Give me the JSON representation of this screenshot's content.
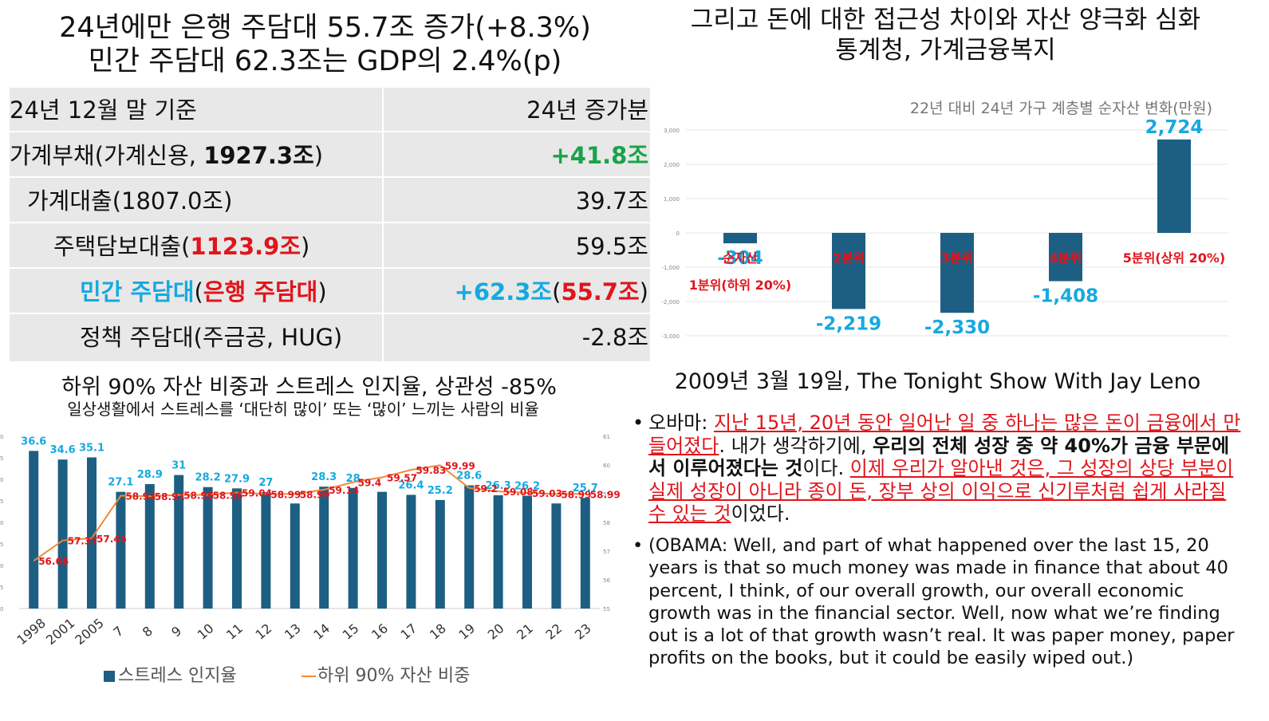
{
  "top_left": {
    "title_line1": "24년에만 은행 주담대 55.7조 증가(+8.3%)",
    "title_line2": "민간 주담대 62.3조는 GDP의 2.4%(p)",
    "table": {
      "header_left": "24년 12월 말 기준",
      "header_right": "24년 증가분",
      "rows": [
        {
          "a": "가계부채(가계신용, ",
          "b": "1927.3조",
          "c": ")",
          "value": "+41.8조"
        },
        {
          "a": "가계대출(1807.0조)",
          "value": "39.7조"
        },
        {
          "a": "주택담보대출(",
          "b": "1123.9조",
          "c": ")",
          "value": "59.5조"
        },
        {
          "a": "민간 주담대",
          "b": "(",
          "c": "은행 주담대",
          "d": ")",
          "value_a": "+62.3조",
          "value_b": "(",
          "value_c": "55.7조",
          "value_d": ")"
        },
        {
          "a": "정책 주담대(주금공, HUG)",
          "value": "-2.8조"
        }
      ]
    }
  },
  "bottom_left": {
    "title": "하위 90% 자산 비중과 스트레스 인지율, 상관성 -85%",
    "subtitle": "일상생활에서 스트레스를 ‘대단히 많이’ 또는 ‘많이’ 느끼는 사람의 비율",
    "chart_data": {
      "type": "bar+line",
      "categories": [
        "1998",
        "2001",
        "2005",
        "7",
        "8",
        "9",
        "10",
        "11",
        "12",
        "13",
        "14",
        "15",
        "16",
        "17",
        "18",
        "19",
        "20",
        "21",
        "22",
        "23"
      ],
      "series": [
        {
          "name": "스트레스 인지율",
          "type": "bar",
          "color": "#1d5f82",
          "values": [
            36.6,
            34.6,
            35.1,
            27.1,
            28.9,
            31,
            28.2,
            27.9,
            27,
            24.4,
            28.3,
            28,
            27.1,
            26.4,
            25.2,
            28.6,
            26.3,
            26.2,
            24.4,
            25.7
          ]
        },
        {
          "name": "하위 90% 자산 비중",
          "type": "line",
          "color": "#ef8a3a",
          "values": [
            56.66,
            57.37,
            57.45,
            58.93,
            58.91,
            58.96,
            58.96,
            59.04,
            58.99,
            58.99,
            59.14,
            59.4,
            59.57,
            59.83,
            59.99,
            59.2,
            59.08,
            59.03,
            58.99,
            58.99
          ],
          "labels": [
            "56.66",
            "57.37",
            "57.45",
            "58.93",
            "58.91",
            "58.96",
            "58.96",
            "59.04",
            "58.99",
            "58.99",
            "59.14",
            "59.4",
            "59.57",
            "59.83",
            "59.99",
            "59.2",
            "59.08",
            "59.03",
            "58.99",
            "58.99"
          ]
        }
      ],
      "bar_labels": [
        "36.6",
        "34.6",
        "35.1",
        "27.1",
        "28.9",
        "31",
        "28.2",
        "27.9",
        "27",
        "",
        "28.3",
        "28",
        "",
        "26.4",
        "25.2",
        "28.6",
        "26.3",
        "26.2",
        "",
        "25.7"
      ],
      "left_ylim": [
        0,
        40
      ],
      "right_ylim": [
        55,
        61
      ],
      "legend": [
        "스트레스 인지율",
        "하위 90% 자산 비중"
      ],
      "legend_position": "bottom"
    }
  },
  "top_right": {
    "title_line1": "그리고 돈에 대한 접근성 차이와 자산 양극화 심화",
    "title_line2": "통계청, 가계금융복지",
    "chart_data": {
      "type": "bar",
      "title": "22년 대비 24년 가구 계층별 순자산 변화(만원)",
      "categories": [
        "1분위(하위 20%)",
        "2분위",
        "3분위",
        "4분위",
        "5분위(상위 20%)"
      ],
      "series_label": "순자산",
      "values": [
        -304,
        -2219,
        -2330,
        -1408,
        2724
      ],
      "value_labels": [
        "-304",
        "-2,219",
        "-2,330",
        "-1,408",
        "2,724"
      ],
      "ylim": [
        -3000,
        3000
      ],
      "yticks": [
        "3,000",
        "2,000",
        "1,000",
        "0",
        "-1,000",
        "-2,000",
        "-3,000"
      ],
      "color": "#1d5f82"
    }
  },
  "bottom_right": {
    "title": "2009년 3월 19일, The Tonight Show With Jay Leno",
    "bullet": "•",
    "p1": {
      "speaker": "오바마: ",
      "red1": "지난 15년, 20년 동안 일어난 일 중 하나는 많은 돈이 금융에서 만들어졌다",
      "t1": ". 내가 생각하기에, ",
      "bold1": "우리의 전체 성장 중 약 40%가 금융 부문에서 이루어졌다는 것",
      "t2": "이다. ",
      "red2": "이제 우리가 알아낸 것은, 그 성장의 상당 부분이 실제 성장이 아니라 종이 돈, 장부 상의 이익으로 신기루처럼 쉽게 사라질 수 있는 것",
      "t3": "이었다."
    },
    "p2": "(OBAMA: Well, and part of what happened over the last 15, 20 years is that so much money was made in finance that about 40 percent, I think, of our overall growth, our overall economic growth was in the financial sector. Well, now what we’re finding out is a lot of that growth wasn’t real. It was paper money, paper profits on the books, but it could be easily wiped out.)"
  }
}
